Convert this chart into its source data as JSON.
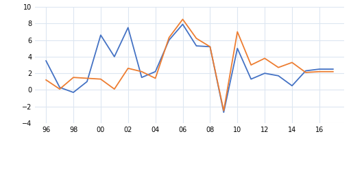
{
  "years": [
    1996,
    1997,
    1998,
    1999,
    2000,
    2001,
    2002,
    2003,
    2004,
    2005,
    2006,
    2007,
    2008,
    2009,
    2010,
    2011,
    2012,
    2013,
    2014,
    2015,
    2016,
    2017
  ],
  "real_value_added": [
    3.5,
    0.3,
    -0.3,
    1.0,
    6.6,
    4.0,
    7.5,
    1.5,
    2.2,
    6.0,
    7.9,
    5.3,
    5.2,
    -2.7,
    5.0,
    1.3,
    2.0,
    1.7,
    0.5,
    2.3,
    2.5,
    2.5
  ],
  "real_compensation": [
    1.2,
    0.1,
    1.5,
    1.4,
    1.3,
    0.1,
    2.6,
    2.2,
    1.4,
    6.3,
    8.5,
    6.2,
    5.2,
    -2.5,
    7.0,
    3.0,
    3.8,
    2.7,
    3.3,
    2.1,
    2.2,
    2.2
  ],
  "color_value_added": "#4472C4",
  "color_compensation": "#ED7D31",
  "ylim": [
    -4,
    10
  ],
  "yticks": [
    -4,
    -2,
    0,
    2,
    4,
    6,
    8,
    10
  ],
  "xtick_labels": [
    "96",
    "98",
    "00",
    "02",
    "04",
    "06",
    "08",
    "10",
    "12",
    "14",
    "16"
  ],
  "xtick_positions": [
    1996,
    1998,
    2000,
    2002,
    2004,
    2006,
    2008,
    2010,
    2012,
    2014,
    2016
  ],
  "linewidth": 1.3,
  "grid_color": "#dce6f1",
  "background_color": "#ffffff"
}
